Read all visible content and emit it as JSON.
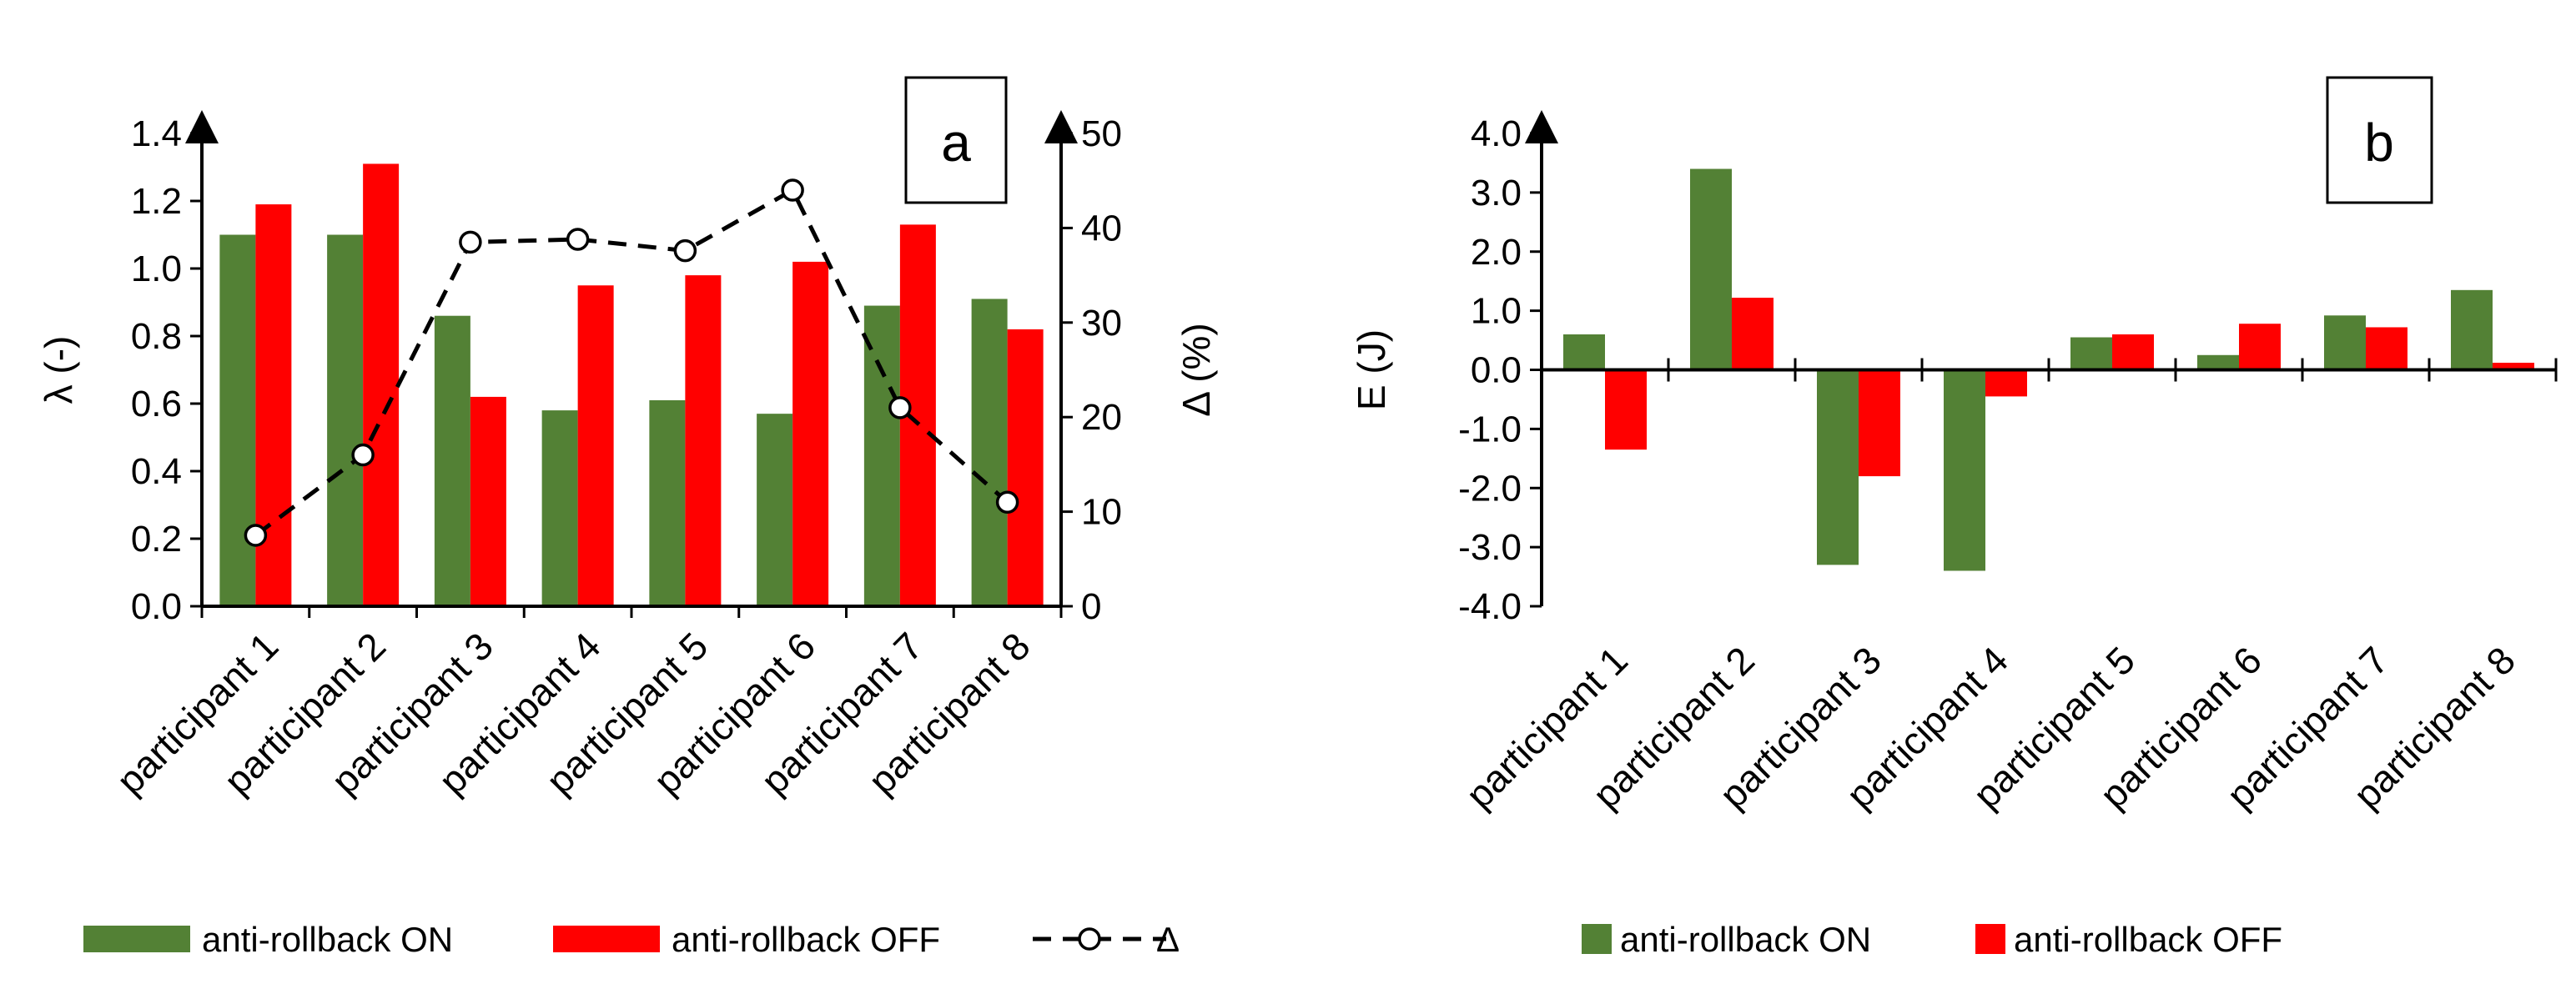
{
  "chart_data": [
    {
      "panel": "a",
      "type": "bar",
      "categories": [
        "participant 1",
        "participant 2",
        "participant 3",
        "participant 4",
        "participant 5",
        "participant 6",
        "participant 7",
        "participant 8"
      ],
      "series": [
        {
          "name": "anti-rollback ON",
          "color": "#538135",
          "axis": "left",
          "values": [
            1.1,
            1.1,
            0.86,
            0.58,
            0.61,
            0.57,
            0.89,
            0.91
          ]
        },
        {
          "name": "anti-rollback OFF",
          "color": "#ff0000",
          "axis": "left",
          "values": [
            1.19,
            1.31,
            0.62,
            0.95,
            0.98,
            1.02,
            1.13,
            0.82
          ]
        },
        {
          "name": "Δ",
          "type": "line",
          "style": "dashed, open circle markers",
          "color": "#000000",
          "axis": "right",
          "values": [
            7.5,
            16,
            38.5,
            38.8,
            37.6,
            44,
            21,
            11
          ]
        }
      ],
      "ylabel": "λ (-)",
      "ylim": [
        0,
        1.4
      ],
      "yticks": [
        "0.0",
        "0.2",
        "0.4",
        "0.6",
        "0.8",
        "1.0",
        "1.2",
        "1.4"
      ],
      "y2label": "Δ (%)",
      "y2lim": [
        0,
        50
      ],
      "y2ticks": [
        "0",
        "10",
        "20",
        "30",
        "40",
        "50"
      ],
      "legend_position": "bottom",
      "grid": false
    },
    {
      "panel": "b",
      "type": "bar",
      "categories": [
        "participant 1",
        "participant 2",
        "participant 3",
        "participant 4",
        "participant 5",
        "participant 6",
        "participant 7",
        "participant 8"
      ],
      "series": [
        {
          "name": "anti-rollback ON",
          "color": "#538135",
          "values": [
            0.6,
            3.4,
            -3.3,
            -3.4,
            0.55,
            0.25,
            0.92,
            1.35
          ]
        },
        {
          "name": "anti-rollback OFF",
          "color": "#ff0000",
          "values": [
            -1.35,
            1.22,
            -1.8,
            -0.45,
            0.6,
            0.78,
            0.72,
            0.12
          ]
        }
      ],
      "ylabel": "E (J)",
      "ylim": [
        -4,
        4
      ],
      "yticks": [
        "-4.0",
        "-3.0",
        "-2.0",
        "-1.0",
        "0.0",
        "1.0",
        "2.0",
        "3.0",
        "4.0"
      ],
      "legend_position": "bottom",
      "grid": false
    }
  ]
}
